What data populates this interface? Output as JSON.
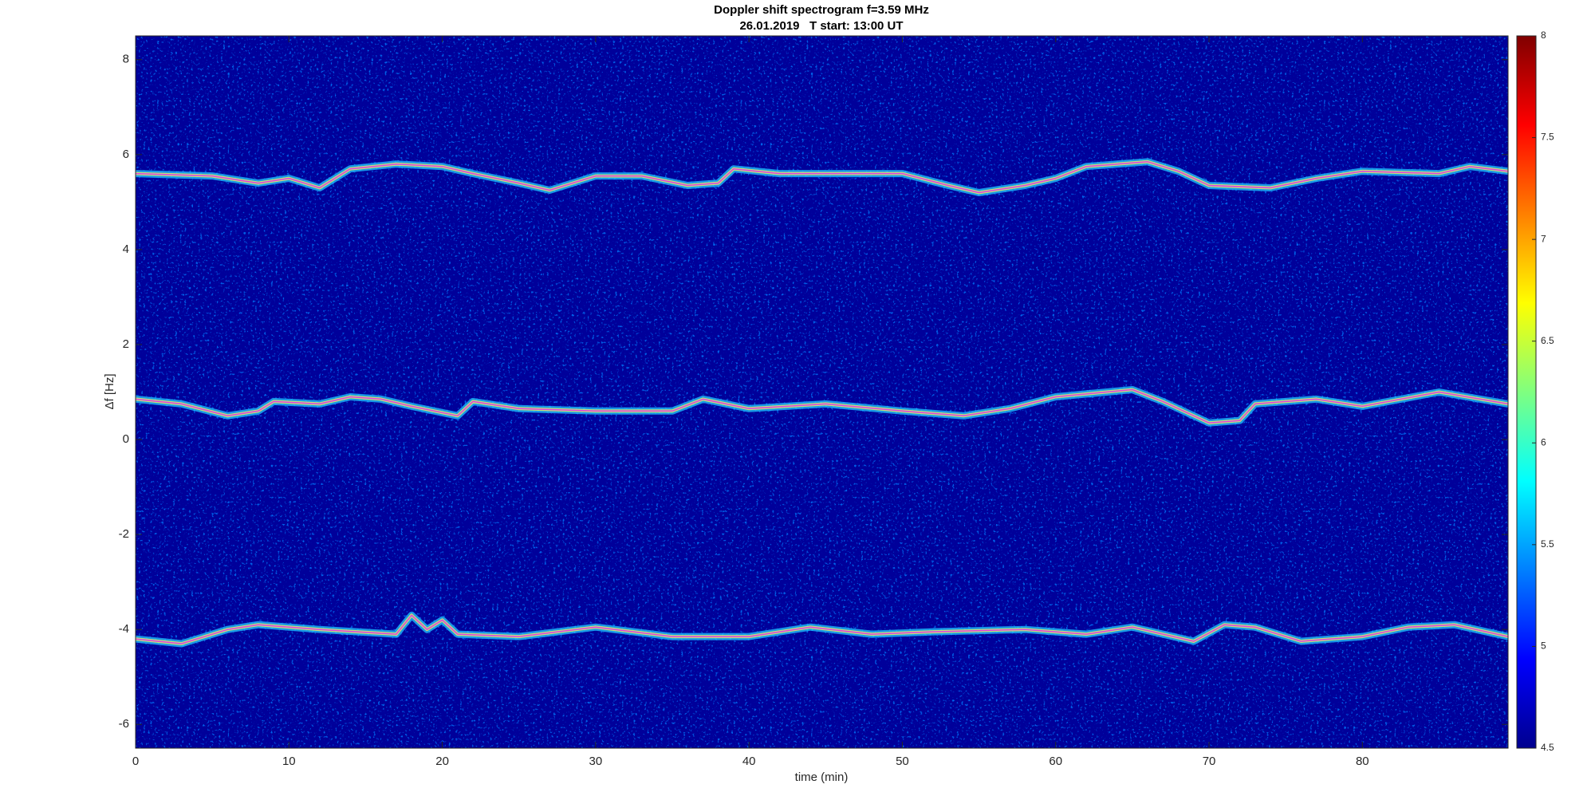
{
  "chart_data": {
    "type": "spectrogram",
    "title": "Doppler shift spectrogram f=3.59 MHz",
    "subtitle": "26.01.2019   T start: 13:00 UT",
    "xlabel": "time (min)",
    "ylabel": "Δf [Hz]",
    "xlim": [
      0,
      89.5
    ],
    "xticks": [
      0,
      10,
      20,
      30,
      40,
      50,
      60,
      70,
      80
    ],
    "ylim": [
      -6.5,
      8.5
    ],
    "yticks": [
      -6,
      -4,
      -2,
      0,
      2,
      4,
      6,
      8
    ],
    "clim": [
      4.5,
      8
    ],
    "cticks": [
      4.5,
      5,
      5.5,
      6,
      6.5,
      7,
      7.5,
      8
    ],
    "line_color": "#e040e0",
    "series": [
      {
        "x": [
          0,
          5,
          8,
          10,
          12,
          14,
          17,
          20,
          22,
          25,
          27,
          30,
          33,
          36,
          38,
          39,
          42,
          45,
          50,
          53,
          55,
          58,
          60,
          62,
          66,
          68,
          70,
          74,
          77,
          80,
          85,
          87,
          89.5
        ],
        "values": [
          5.6,
          5.55,
          5.4,
          5.5,
          5.3,
          5.7,
          5.8,
          5.75,
          5.6,
          5.4,
          5.25,
          5.55,
          5.55,
          5.35,
          5.4,
          5.7,
          5.6,
          5.6,
          5.6,
          5.35,
          5.2,
          5.35,
          5.5,
          5.75,
          5.85,
          5.65,
          5.35,
          5.3,
          5.5,
          5.65,
          5.6,
          5.75,
          5.65
        ]
      },
      {
        "x": [
          0,
          3,
          6,
          8,
          9,
          12,
          14,
          16,
          18,
          21,
          22,
          25,
          30,
          35,
          37,
          40,
          45,
          50,
          54,
          57,
          60,
          65,
          67,
          70,
          72,
          73,
          77,
          80,
          85,
          89.5
        ],
        "values": [
          0.85,
          0.75,
          0.5,
          0.6,
          0.8,
          0.75,
          0.9,
          0.85,
          0.7,
          0.5,
          0.8,
          0.65,
          0.6,
          0.6,
          0.85,
          0.65,
          0.75,
          0.6,
          0.5,
          0.65,
          0.9,
          1.05,
          0.8,
          0.35,
          0.4,
          0.75,
          0.85,
          0.7,
          1.0,
          0.75
        ]
      },
      {
        "x": [
          0,
          3,
          6,
          8,
          12,
          17,
          18,
          19,
          20,
          21,
          25,
          30,
          35,
          40,
          44,
          48,
          52,
          58,
          62,
          65,
          69,
          71,
          73,
          76,
          80,
          83,
          86,
          89.5
        ],
        "values": [
          -4.2,
          -4.3,
          -4.0,
          -3.9,
          -4.0,
          -4.1,
          -3.7,
          -4.0,
          -3.8,
          -4.1,
          -4.15,
          -3.95,
          -4.15,
          -4.15,
          -3.95,
          -4.1,
          -4.05,
          -4.0,
          -4.1,
          -3.95,
          -4.25,
          -3.9,
          -3.95,
          -4.25,
          -4.15,
          -3.95,
          -3.9,
          -4.15
        ]
      }
    ]
  }
}
